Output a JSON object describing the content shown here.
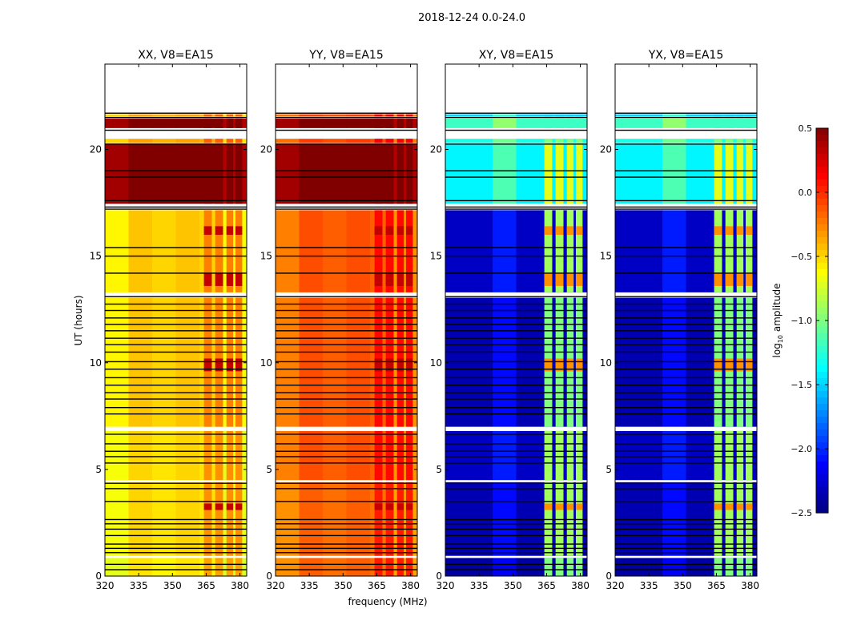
{
  "chart_data": {
    "type": "heatmap",
    "suptitle": "2018-12-24 0.0-24.0",
    "xlabel": "frequency (MHz)",
    "ylabel": "UT (hours)",
    "xlim": [
      320,
      383
    ],
    "ylim": [
      0,
      24
    ],
    "xticks": [
      320,
      335,
      350,
      365,
      380
    ],
    "yticks": [
      0,
      5,
      10,
      15,
      20
    ],
    "panels": [
      {
        "title": "XX, V8=EA15",
        "key": "xx"
      },
      {
        "title": "YY, V8=EA15",
        "key": "yy"
      },
      {
        "title": "XY, V8=EA15",
        "key": "xy"
      },
      {
        "title": "YX, V8=EA15",
        "key": "xy"
      }
    ],
    "colorbar": {
      "label": "log10 amplitude",
      "label_main": "log",
      "label_sub": "10",
      "label_rest": " amplitude",
      "range": [
        -2.5,
        0.5
      ],
      "ticks": [
        "0.5",
        "0.0",
        "−0.5",
        "−1.0",
        "−1.5",
        "−2.0",
        "−2.5"
      ],
      "tick_values": [
        0.5,
        0.0,
        -0.5,
        -1.0,
        -1.5,
        -2.0,
        -2.5
      ],
      "colormap": "jet"
    },
    "rfi_channels_mhz": [
      [
        364,
        367.5
      ],
      [
        369,
        372.5
      ],
      [
        374,
        377
      ],
      [
        378,
        381
      ]
    ],
    "segments_hours": [
      {
        "t": [
          0.0,
          0.85
        ],
        "xx": -0.6,
        "yy": -0.2,
        "xy": -2.4,
        "rfi": -1.0
      },
      {
        "t": [
          0.95,
          4.4
        ],
        "xx": -0.55,
        "yy": -0.2,
        "xy": -2.35,
        "rfi": -0.9
      },
      {
        "t": [
          4.5,
          6.8
        ],
        "xx": -0.55,
        "yy": -0.15,
        "xy": -2.3,
        "rfi": -0.9
      },
      {
        "t": [
          7.0,
          13.05
        ],
        "xx": -0.5,
        "yy": -0.15,
        "xy": -2.35,
        "rfi": -1.0
      },
      {
        "t": [
          13.3,
          17.15
        ],
        "xx": -0.5,
        "yy": -0.15,
        "xy": -2.3,
        "rfi": -0.9
      },
      {
        "t": [
          17.45,
          20.25
        ],
        "xx": 0.5,
        "yy": 0.5,
        "xy": -1.4,
        "rfi": -0.7
      },
      {
        "t": [
          20.3,
          20.5
        ],
        "xx": -0.4,
        "yy": -0.1,
        "xy": -1.3,
        "rfi": -1.0
      },
      {
        "t": [
          21.0,
          21.45
        ],
        "xx": 0.5,
        "yy": 0.5,
        "xy": -1.2,
        "rfi": -1.2
      },
      {
        "t": [
          21.55,
          21.65
        ],
        "xx": -0.4,
        "yy": -0.1,
        "xy": -1.5,
        "rfi": -1.5
      }
    ],
    "hot_spots_hours": [
      [
        3.1,
        3.4
      ],
      [
        9.6,
        10.2
      ],
      [
        13.6,
        14.2
      ],
      [
        16.0,
        16.4
      ]
    ],
    "flagged_lines_hours": [
      0.3,
      0.55,
      1.1,
      1.3,
      1.5,
      1.9,
      2.2,
      2.45,
      2.65,
      3.5,
      4.1,
      4.35,
      5.3,
      5.6,
      5.85,
      6.2,
      6.65,
      7.6,
      7.9,
      8.3,
      8.6,
      8.95,
      9.3,
      9.7,
      10.05,
      10.5,
      10.85,
      11.15,
      11.5,
      11.8,
      12.1,
      12.45,
      12.75,
      13.1,
      14.2,
      15.0,
      15.4,
      17.2,
      17.3,
      17.6,
      18.7,
      19.0,
      20.25,
      20.9,
      21.5,
      21.7
    ]
  }
}
